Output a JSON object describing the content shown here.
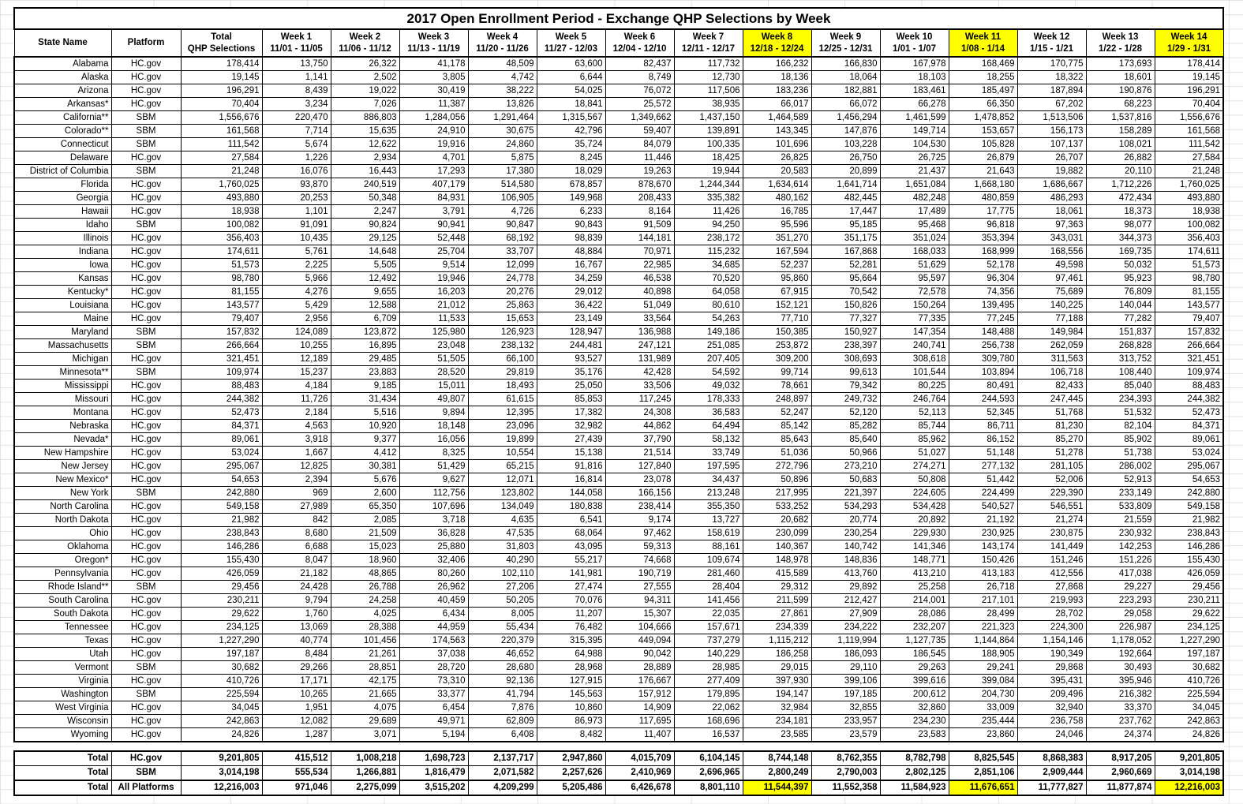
{
  "title": "2017 Open Enrollment Period - Exchange QHP Selections by Week",
  "colors": {
    "highlight": "#ffff00",
    "border": "#000000",
    "gridline": "#e3e3e3"
  },
  "header": {
    "state": "State Name",
    "platform": "Platform",
    "total_line1": "Total",
    "total_line2": "QHP Selections",
    "weeks": [
      {
        "label": "Week 1",
        "dates": "11/01 - 11/05",
        "highlight": false
      },
      {
        "label": "Week 2",
        "dates": "11/06 - 11/12",
        "highlight": false
      },
      {
        "label": "Week 3",
        "dates": "11/13 - 11/19",
        "highlight": false
      },
      {
        "label": "Week 4",
        "dates": "11/20 - 11/26",
        "highlight": false
      },
      {
        "label": "Week 5",
        "dates": "11/27 - 12/03",
        "highlight": false
      },
      {
        "label": "Week 6",
        "dates": "12/04 - 12/10",
        "highlight": false
      },
      {
        "label": "Week 7",
        "dates": "12/11 - 12/17",
        "highlight": false
      },
      {
        "label": "Week 8",
        "dates": "12/18 - 12/24",
        "highlight": true
      },
      {
        "label": "Week 9",
        "dates": "12/25 - 12/31",
        "highlight": false
      },
      {
        "label": "Week 10",
        "dates": "1/01 - 1/07",
        "highlight": false
      },
      {
        "label": "Week 11",
        "dates": "1/08 - 1/14",
        "highlight": true
      },
      {
        "label": "Week 12",
        "dates": "1/15 - 1/21",
        "highlight": false
      },
      {
        "label": "Week 13",
        "dates": "1/22 - 1/28",
        "highlight": false
      },
      {
        "label": "Week 14",
        "dates": "1/29 - 1/31",
        "highlight": true
      }
    ]
  },
  "rows": [
    [
      "Alabama",
      "HC.gov",
      "178,414",
      "13,750",
      "26,322",
      "41,178",
      "48,509",
      "63,600",
      "82,437",
      "117,732",
      "166,232",
      "166,830",
      "167,978",
      "168,469",
      "170,775",
      "173,693",
      "178,414"
    ],
    [
      "Alaska",
      "HC.gov",
      "19,145",
      "1,141",
      "2,502",
      "3,805",
      "4,742",
      "6,644",
      "8,749",
      "12,730",
      "18,136",
      "18,064",
      "18,103",
      "18,255",
      "18,322",
      "18,601",
      "19,145"
    ],
    [
      "Arizona",
      "HC.gov",
      "196,291",
      "8,439",
      "19,022",
      "30,419",
      "38,222",
      "54,025",
      "76,072",
      "117,506",
      "183,236",
      "182,881",
      "183,461",
      "185,497",
      "187,894",
      "190,876",
      "196,291"
    ],
    [
      "Arkansas*",
      "HC.gov",
      "70,404",
      "3,234",
      "7,026",
      "11,387",
      "13,826",
      "18,841",
      "25,572",
      "38,935",
      "66,017",
      "66,072",
      "66,278",
      "66,350",
      "67,202",
      "68,223",
      "70,404"
    ],
    [
      "California**",
      "SBM",
      "1,556,676",
      "220,470",
      "886,803",
      "1,284,056",
      "1,291,464",
      "1,315,567",
      "1,349,662",
      "1,437,150",
      "1,464,589",
      "1,456,294",
      "1,461,599",
      "1,478,852",
      "1,513,506",
      "1,537,816",
      "1,556,676"
    ],
    [
      "Colorado**",
      "SBM",
      "161,568",
      "7,714",
      "15,635",
      "24,910",
      "30,675",
      "42,796",
      "59,407",
      "139,891",
      "143,345",
      "147,876",
      "149,714",
      "153,657",
      "156,173",
      "158,289",
      "161,568"
    ],
    [
      "Connecticut",
      "SBM",
      "111,542",
      "5,674",
      "12,622",
      "19,916",
      "24,860",
      "35,724",
      "84,079",
      "100,335",
      "101,696",
      "103,228",
      "104,530",
      "105,828",
      "107,137",
      "108,021",
      "111,542"
    ],
    [
      "Delaware",
      "HC.gov",
      "27,584",
      "1,226",
      "2,934",
      "4,701",
      "5,875",
      "8,245",
      "11,446",
      "18,425",
      "26,825",
      "26,750",
      "26,725",
      "26,879",
      "26,707",
      "26,882",
      "27,584"
    ],
    [
      "District of Columbia",
      "SBM",
      "21,248",
      "16,076",
      "16,443",
      "17,293",
      "17,380",
      "18,029",
      "19,263",
      "19,944",
      "20,583",
      "20,899",
      "21,437",
      "21,643",
      "19,882",
      "20,110",
      "21,248"
    ],
    [
      "Florida",
      "HC.gov",
      "1,760,025",
      "93,870",
      "240,519",
      "407,179",
      "514,580",
      "678,857",
      "878,670",
      "1,244,344",
      "1,634,614",
      "1,641,714",
      "1,651,084",
      "1,668,180",
      "1,686,667",
      "1,712,226",
      "1,760,025"
    ],
    [
      "Georgia",
      "HC.gov",
      "493,880",
      "20,253",
      "50,348",
      "84,931",
      "106,905",
      "149,968",
      "208,433",
      "335,382",
      "480,162",
      "482,445",
      "482,248",
      "480,859",
      "486,293",
      "472,434",
      "493,880"
    ],
    [
      "Hawaii",
      "HC.gov",
      "18,938",
      "1,101",
      "2,247",
      "3,791",
      "4,726",
      "6,233",
      "8,164",
      "11,426",
      "16,785",
      "17,447",
      "17,489",
      "17,775",
      "18,061",
      "18,373",
      "18,938"
    ],
    [
      "Idaho",
      "SBM",
      "100,082",
      "91,091",
      "90,824",
      "90,941",
      "90,847",
      "90,843",
      "91,509",
      "94,250",
      "95,596",
      "95,185",
      "95,468",
      "96,818",
      "97,363",
      "98,077",
      "100,082"
    ],
    [
      "Illinois",
      "HC.gov",
      "356,403",
      "10,435",
      "29,125",
      "52,448",
      "68,192",
      "98,839",
      "144,181",
      "238,172",
      "351,270",
      "351,175",
      "351,024",
      "353,394",
      "343,031",
      "344,373",
      "356,403"
    ],
    [
      "Indiana",
      "HC.gov",
      "174,611",
      "5,761",
      "14,648",
      "25,704",
      "33,707",
      "48,884",
      "70,971",
      "115,232",
      "167,594",
      "167,868",
      "168,033",
      "168,999",
      "168,556",
      "169,735",
      "174,611"
    ],
    [
      "Iowa",
      "HC.gov",
      "51,573",
      "2,225",
      "5,505",
      "9,514",
      "12,099",
      "16,767",
      "22,985",
      "34,685",
      "52,237",
      "52,281",
      "51,629",
      "52,178",
      "49,598",
      "50,032",
      "51,573"
    ],
    [
      "Kansas",
      "HC.gov",
      "98,780",
      "5,966",
      "12,492",
      "19,946",
      "24,778",
      "34,259",
      "46,538",
      "70,520",
      "95,860",
      "95,664",
      "95,597",
      "96,304",
      "97,461",
      "95,923",
      "98,780"
    ],
    [
      "Kentucky*",
      "HC.gov",
      "81,155",
      "4,276",
      "9,655",
      "16,203",
      "20,276",
      "29,012",
      "40,898",
      "64,058",
      "67,915",
      "70,542",
      "72,578",
      "74,356",
      "75,689",
      "76,809",
      "81,155"
    ],
    [
      "Louisiana",
      "HC.gov",
      "143,577",
      "5,429",
      "12,588",
      "21,012",
      "25,863",
      "36,422",
      "51,049",
      "80,610",
      "152,121",
      "150,826",
      "150,264",
      "139,495",
      "140,225",
      "140,044",
      "143,577"
    ],
    [
      "Maine",
      "HC.gov",
      "79,407",
      "2,956",
      "6,709",
      "11,533",
      "15,653",
      "23,149",
      "33,564",
      "54,263",
      "77,710",
      "77,327",
      "77,335",
      "77,245",
      "77,188",
      "77,282",
      "79,407"
    ],
    [
      "Maryland",
      "SBM",
      "157,832",
      "124,089",
      "123,872",
      "125,980",
      "126,923",
      "128,947",
      "136,988",
      "149,186",
      "150,385",
      "150,927",
      "147,354",
      "148,488",
      "149,984",
      "151,837",
      "157,832"
    ],
    [
      "Massachusetts",
      "SBM",
      "266,664",
      "10,255",
      "16,895",
      "23,048",
      "238,132",
      "244,481",
      "247,121",
      "251,085",
      "253,872",
      "238,397",
      "240,741",
      "256,738",
      "262,059",
      "268,828",
      "266,664"
    ],
    [
      "Michigan",
      "HC.gov",
      "321,451",
      "12,189",
      "29,485",
      "51,505",
      "66,100",
      "93,527",
      "131,989",
      "207,405",
      "309,200",
      "308,693",
      "308,618",
      "309,780",
      "311,563",
      "313,752",
      "321,451"
    ],
    [
      "Minnesota**",
      "SBM",
      "109,974",
      "15,237",
      "23,883",
      "28,520",
      "29,819",
      "35,176",
      "42,428",
      "54,592",
      "99,714",
      "99,613",
      "101,544",
      "103,894",
      "106,718",
      "108,440",
      "109,974"
    ],
    [
      "Mississippi",
      "HC.gov",
      "88,483",
      "4,184",
      "9,185",
      "15,011",
      "18,493",
      "25,050",
      "33,506",
      "49,032",
      "78,661",
      "79,342",
      "80,225",
      "80,491",
      "82,433",
      "85,040",
      "88,483"
    ],
    [
      "Missouri",
      "HC.gov",
      "244,382",
      "11,726",
      "31,434",
      "49,807",
      "61,615",
      "85,853",
      "117,245",
      "178,333",
      "248,897",
      "249,732",
      "246,764",
      "244,593",
      "247,445",
      "234,393",
      "244,382"
    ],
    [
      "Montana",
      "HC.gov",
      "52,473",
      "2,184",
      "5,516",
      "9,894",
      "12,395",
      "17,382",
      "24,308",
      "36,583",
      "52,247",
      "52,120",
      "52,113",
      "52,345",
      "51,768",
      "51,532",
      "52,473"
    ],
    [
      "Nebraska",
      "HC.gov",
      "84,371",
      "4,563",
      "10,920",
      "18,148",
      "23,096",
      "32,982",
      "44,862",
      "64,494",
      "85,142",
      "85,282",
      "85,744",
      "86,711",
      "81,230",
      "82,104",
      "84,371"
    ],
    [
      "Nevada*",
      "HC.gov",
      "89,061",
      "3,918",
      "9,377",
      "16,056",
      "19,899",
      "27,439",
      "37,790",
      "58,132",
      "85,643",
      "85,640",
      "85,962",
      "86,152",
      "85,270",
      "85,902",
      "89,061"
    ],
    [
      "New Hampshire",
      "HC.gov",
      "53,024",
      "1,667",
      "4,412",
      "8,325",
      "10,554",
      "15,138",
      "21,514",
      "33,749",
      "51,036",
      "50,966",
      "51,027",
      "51,148",
      "51,278",
      "51,738",
      "53,024"
    ],
    [
      "New Jersey",
      "HC.gov",
      "295,067",
      "12,825",
      "30,381",
      "51,429",
      "65,215",
      "91,816",
      "127,840",
      "197,595",
      "272,796",
      "273,210",
      "274,271",
      "277,132",
      "281,105",
      "286,002",
      "295,067"
    ],
    [
      "New Mexico*",
      "HC.gov",
      "54,653",
      "2,394",
      "5,676",
      "9,627",
      "12,071",
      "16,814",
      "23,078",
      "34,437",
      "50,896",
      "50,683",
      "50,808",
      "51,442",
      "52,006",
      "52,913",
      "54,653"
    ],
    [
      "New York",
      "SBM",
      "242,880",
      "969",
      "2,600",
      "112,756",
      "123,802",
      "144,058",
      "166,156",
      "213,248",
      "217,995",
      "221,397",
      "224,605",
      "224,499",
      "229,390",
      "233,149",
      "242,880"
    ],
    [
      "North Carolina",
      "HC.gov",
      "549,158",
      "27,989",
      "65,350",
      "107,696",
      "134,049",
      "180,838",
      "238,414",
      "355,350",
      "533,252",
      "534,293",
      "534,428",
      "540,527",
      "546,551",
      "533,809",
      "549,158"
    ],
    [
      "North Dakota",
      "HC.gov",
      "21,982",
      "842",
      "2,085",
      "3,718",
      "4,635",
      "6,541",
      "9,174",
      "13,727",
      "20,682",
      "20,774",
      "20,892",
      "21,192",
      "21,274",
      "21,559",
      "21,982"
    ],
    [
      "Ohio",
      "HC.gov",
      "238,843",
      "8,680",
      "21,509",
      "36,828",
      "47,535",
      "68,064",
      "97,462",
      "158,619",
      "230,099",
      "230,254",
      "229,930",
      "230,925",
      "230,875",
      "230,932",
      "238,843"
    ],
    [
      "Oklahoma",
      "HC.gov",
      "146,286",
      "6,688",
      "15,023",
      "25,880",
      "31,803",
      "43,095",
      "59,313",
      "88,161",
      "140,367",
      "140,742",
      "141,346",
      "143,174",
      "141,449",
      "142,253",
      "146,286"
    ],
    [
      "Oregon*",
      "HC.gov",
      "155,430",
      "8,047",
      "18,960",
      "32,406",
      "40,290",
      "55,217",
      "74,668",
      "109,674",
      "148,978",
      "148,836",
      "148,771",
      "150,426",
      "151,246",
      "151,226",
      "155,430"
    ],
    [
      "Pennsylvania",
      "HC.gov",
      "426,059",
      "21,182",
      "48,865",
      "80,260",
      "102,110",
      "141,981",
      "190,719",
      "281,460",
      "415,589",
      "413,760",
      "413,210",
      "413,183",
      "412,556",
      "417,038",
      "426,059"
    ],
    [
      "Rhode Island**",
      "SBM",
      "29,456",
      "24,428",
      "26,788",
      "26,962",
      "27,206",
      "27,474",
      "27,555",
      "28,404",
      "29,312",
      "29,892",
      "25,258",
      "26,718",
      "27,868",
      "29,227",
      "29,456"
    ],
    [
      "South Carolina",
      "HC.gov",
      "230,211",
      "9,794",
      "24,258",
      "40,459",
      "50,205",
      "70,076",
      "94,311",
      "141,456",
      "211,599",
      "212,427",
      "214,001",
      "217,101",
      "219,993",
      "223,293",
      "230,211"
    ],
    [
      "South Dakota",
      "HC.gov",
      "29,622",
      "1,760",
      "4,025",
      "6,434",
      "8,005",
      "11,207",
      "15,307",
      "22,035",
      "27,861",
      "27,909",
      "28,086",
      "28,499",
      "28,702",
      "29,058",
      "29,622"
    ],
    [
      "Tennessee",
      "HC.gov",
      "234,125",
      "13,069",
      "28,388",
      "44,959",
      "55,434",
      "76,482",
      "104,666",
      "157,671",
      "234,339",
      "234,222",
      "232,207",
      "221,323",
      "224,300",
      "226,987",
      "234,125"
    ],
    [
      "Texas",
      "HC.gov",
      "1,227,290",
      "40,774",
      "101,456",
      "174,563",
      "220,379",
      "315,395",
      "449,094",
      "737,279",
      "1,115,212",
      "1,119,994",
      "1,127,735",
      "1,144,864",
      "1,154,146",
      "1,178,052",
      "1,227,290"
    ],
    [
      "Utah",
      "HC.gov",
      "197,187",
      "8,484",
      "21,261",
      "37,038",
      "46,652",
      "64,988",
      "90,042",
      "140,229",
      "186,258",
      "186,093",
      "186,545",
      "188,905",
      "190,349",
      "192,664",
      "197,187"
    ],
    [
      "Vermont",
      "SBM",
      "30,682",
      "29,266",
      "28,851",
      "28,720",
      "28,680",
      "28,968",
      "28,889",
      "28,985",
      "29,015",
      "29,110",
      "29,263",
      "29,241",
      "29,868",
      "30,493",
      "30,682"
    ],
    [
      "Virginia",
      "HC.gov",
      "410,726",
      "17,171",
      "42,175",
      "73,310",
      "92,136",
      "127,915",
      "176,667",
      "277,409",
      "397,930",
      "399,106",
      "399,616",
      "399,084",
      "395,431",
      "395,946",
      "410,726"
    ],
    [
      "Washington",
      "SBM",
      "225,594",
      "10,265",
      "21,665",
      "33,377",
      "41,794",
      "145,563",
      "157,912",
      "179,895",
      "194,147",
      "197,185",
      "200,612",
      "204,730",
      "209,496",
      "216,382",
      "225,594"
    ],
    [
      "West Virginia",
      "HC.gov",
      "34,045",
      "1,951",
      "4,075",
      "6,454",
      "7,876",
      "10,860",
      "14,909",
      "22,062",
      "32,984",
      "32,855",
      "32,860",
      "33,009",
      "32,940",
      "33,370",
      "34,045"
    ],
    [
      "Wisconsin",
      "HC.gov",
      "242,863",
      "12,082",
      "29,689",
      "49,971",
      "62,809",
      "86,973",
      "117,695",
      "168,696",
      "234,181",
      "233,957",
      "234,230",
      "235,444",
      "236,758",
      "237,762",
      "242,863"
    ],
    [
      "Wyoming",
      "HC.gov",
      "24,826",
      "1,287",
      "3,071",
      "5,194",
      "6,408",
      "8,482",
      "11,407",
      "16,537",
      "23,585",
      "23,579",
      "23,583",
      "23,860",
      "24,046",
      "24,374",
      "24,826"
    ]
  ],
  "totals": [
    [
      "Total",
      "HC.gov",
      "9,201,805",
      "415,512",
      "1,008,218",
      "1,698,723",
      "2,137,717",
      "2,947,860",
      "4,015,709",
      "6,104,145",
      "8,744,148",
      "8,762,355",
      "8,782,798",
      "8,825,545",
      "8,868,383",
      "8,917,205",
      "9,201,805"
    ],
    [
      "Total",
      "SBM",
      "3,014,198",
      "555,534",
      "1,266,881",
      "1,816,479",
      "2,071,582",
      "2,257,626",
      "2,410,969",
      "2,696,965",
      "2,800,249",
      "2,790,003",
      "2,802,125",
      "2,851,106",
      "2,909,444",
      "2,960,669",
      "3,014,198"
    ],
    [
      "Total",
      "All Platforms",
      "12,216,003",
      "971,046",
      "2,275,099",
      "3,515,202",
      "4,209,299",
      "5,205,486",
      "6,426,678",
      "8,801,110",
      "11,544,397",
      "11,552,358",
      "11,584,923",
      "11,676,651",
      "11,777,827",
      "11,877,874",
      "12,216,003"
    ]
  ],
  "totals_highlight_row": 2,
  "totals_highlight_cols": [
    10,
    13,
    16
  ]
}
